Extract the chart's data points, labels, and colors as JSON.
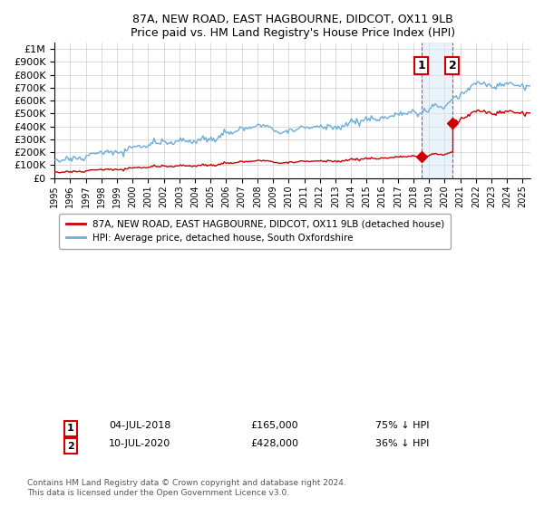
{
  "title": "87A, NEW ROAD, EAST HAGBOURNE, DIDCOT, OX11 9LB",
  "subtitle": "Price paid vs. HM Land Registry's House Price Index (HPI)",
  "hpi_label": "HPI: Average price, detached house, South Oxfordshire",
  "property_label": "87A, NEW ROAD, EAST HAGBOURNE, DIDCOT, OX11 9LB (detached house)",
  "legend_note": "Contains HM Land Registry data © Crown copyright and database right 2024.\nThis data is licensed under the Open Government Licence v3.0.",
  "transactions": [
    {
      "num": 1,
      "date": "04-JUL-2018",
      "price": 165000,
      "pct_hpi": "75% ↓ HPI",
      "year": 2018.5
    },
    {
      "num": 2,
      "date": "10-JUL-2020",
      "price": 428000,
      "pct_hpi": "36% ↓ HPI",
      "year": 2020.5
    }
  ],
  "hpi_color": "#6baed6",
  "price_color": "#cc0000",
  "shaded_color": "#d6e8f7",
  "ylim": [
    0,
    1050000
  ],
  "yticks": [
    0,
    100000,
    200000,
    300000,
    400000,
    500000,
    600000,
    700000,
    800000,
    900000,
    1000000
  ],
  "xmin": 1995,
  "xmax": 2025.5,
  "xtick_years": [
    1995,
    1996,
    1997,
    1998,
    1999,
    2000,
    2001,
    2002,
    2003,
    2004,
    2005,
    2006,
    2007,
    2008,
    2009,
    2010,
    2011,
    2012,
    2013,
    2014,
    2015,
    2016,
    2017,
    2018,
    2019,
    2020,
    2021,
    2022,
    2023,
    2024,
    2025
  ]
}
